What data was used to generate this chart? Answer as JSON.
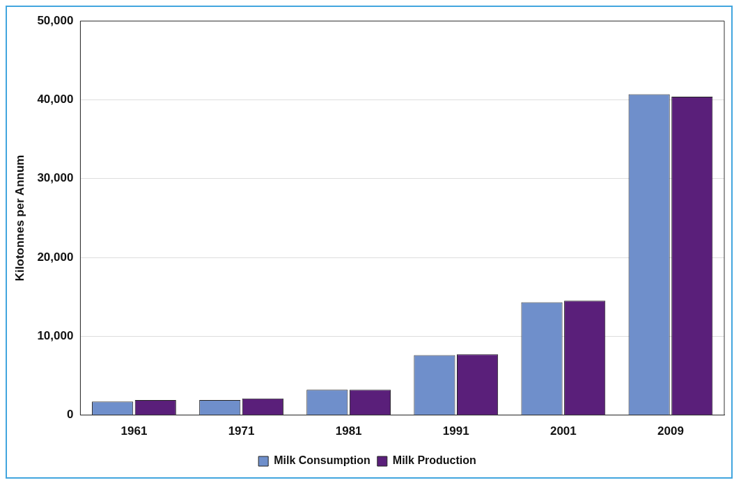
{
  "chart_data": {
    "type": "bar",
    "ylabel": "Kilotonnes per Annum",
    "categories": [
      "1961",
      "1971",
      "1981",
      "1991",
      "2001",
      "2009"
    ],
    "series": [
      {
        "name": "Milk Consumption",
        "color": "#6f8fcb",
        "values": [
          1700,
          1900,
          3200,
          7600,
          14300,
          40700
        ]
      },
      {
        "name": "Milk Production",
        "color": "#5a1f7a",
        "values": [
          1900,
          2100,
          3200,
          7700,
          14500,
          40400
        ]
      }
    ],
    "ylim": [
      0,
      50000
    ],
    "yticks": [
      {
        "value": 0,
        "label": "0"
      },
      {
        "value": 10000,
        "label": "10,000"
      },
      {
        "value": 20000,
        "label": "20,000"
      },
      {
        "value": 30000,
        "label": "30,000"
      },
      {
        "value": 40000,
        "label": "40,000"
      },
      {
        "value": 50000,
        "label": "50,000"
      }
    ],
    "grid": "y",
    "legend": "bottom"
  }
}
